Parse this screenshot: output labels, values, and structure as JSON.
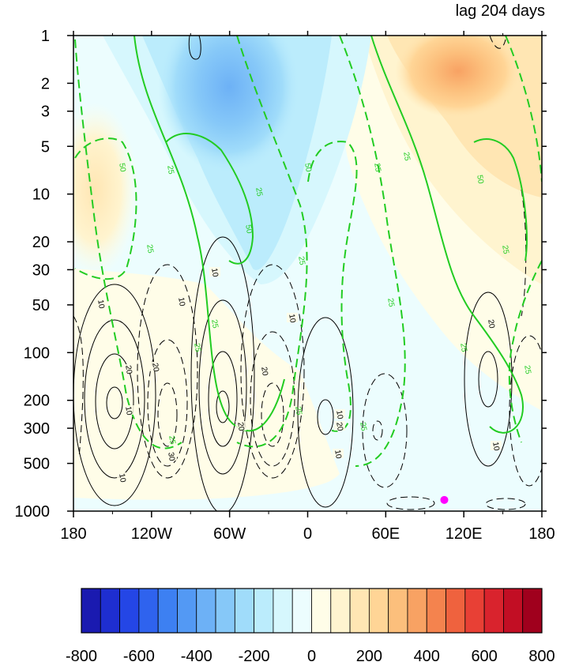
{
  "chart_data": {
    "type": "heatmap",
    "title": "lag 204 days",
    "xlabel": "",
    "ylabel": "",
    "x_ticks": [
      "180",
      "120W",
      "60W",
      "0",
      "60E",
      "120E",
      "180"
    ],
    "x_range": [
      -180,
      180
    ],
    "y_ticks": [
      "1",
      "2",
      "3",
      "5",
      "10",
      "20",
      "30",
      "50",
      "100",
      "200",
      "300",
      "500",
      "1000"
    ],
    "y_range": [
      1,
      1000
    ],
    "y_scale": "log",
    "colorbar": {
      "labels": [
        "-800",
        "-600",
        "-400",
        "-200",
        "0",
        "200",
        "400",
        "600",
        "800"
      ],
      "range": [
        -800,
        800
      ],
      "colors": [
        "#1a1ab0",
        "#1e2ed0",
        "#2446e6",
        "#2f63ee",
        "#3d80f2",
        "#5399f4",
        "#6db1f6",
        "#86c8f8",
        "#a0dcfa",
        "#bbecfc",
        "#d6f7fd",
        "#ecfdfe",
        "#fffde8",
        "#fff4cf",
        "#ffe6b3",
        "#ffd596",
        "#fcbf7c",
        "#f8a263",
        "#f4834e",
        "#ef623e",
        "#e84035",
        "#d9232d",
        "#c20e24",
        "#a0001d"
      ]
    },
    "shading_regions": [
      {
        "center_lon": -75,
        "center_p": 4,
        "value": -300
      },
      {
        "center_lon": -40,
        "center_p": 12,
        "value": -150
      },
      {
        "center_lon": 105,
        "center_p": 2,
        "value": 300
      },
      {
        "center_lon": 130,
        "center_p": 6,
        "value": 200
      },
      {
        "center_lon": -170,
        "center_p": 10,
        "value": 100
      },
      {
        "center_lon": -100,
        "center_p": 200,
        "value": 50
      },
      {
        "center_lon": 60,
        "center_p": 400,
        "value": -50
      }
    ],
    "contour_labels_black": [
      "10",
      "10",
      "20",
      "20",
      "10",
      "30",
      "10",
      "20",
      "20",
      "10",
      "10",
      "20",
      "10",
      "20",
      "10",
      "10"
    ],
    "contour_labels_green": [
      "50",
      "25",
      "25",
      "50",
      "25",
      "50",
      "25",
      "25",
      "25",
      "25",
      "25",
      "50",
      "25",
      "25",
      "25",
      "25",
      "25",
      "25",
      "25"
    ],
    "marker": {
      "lon": 105,
      "p": 850,
      "color": "#ff00ff"
    }
  }
}
